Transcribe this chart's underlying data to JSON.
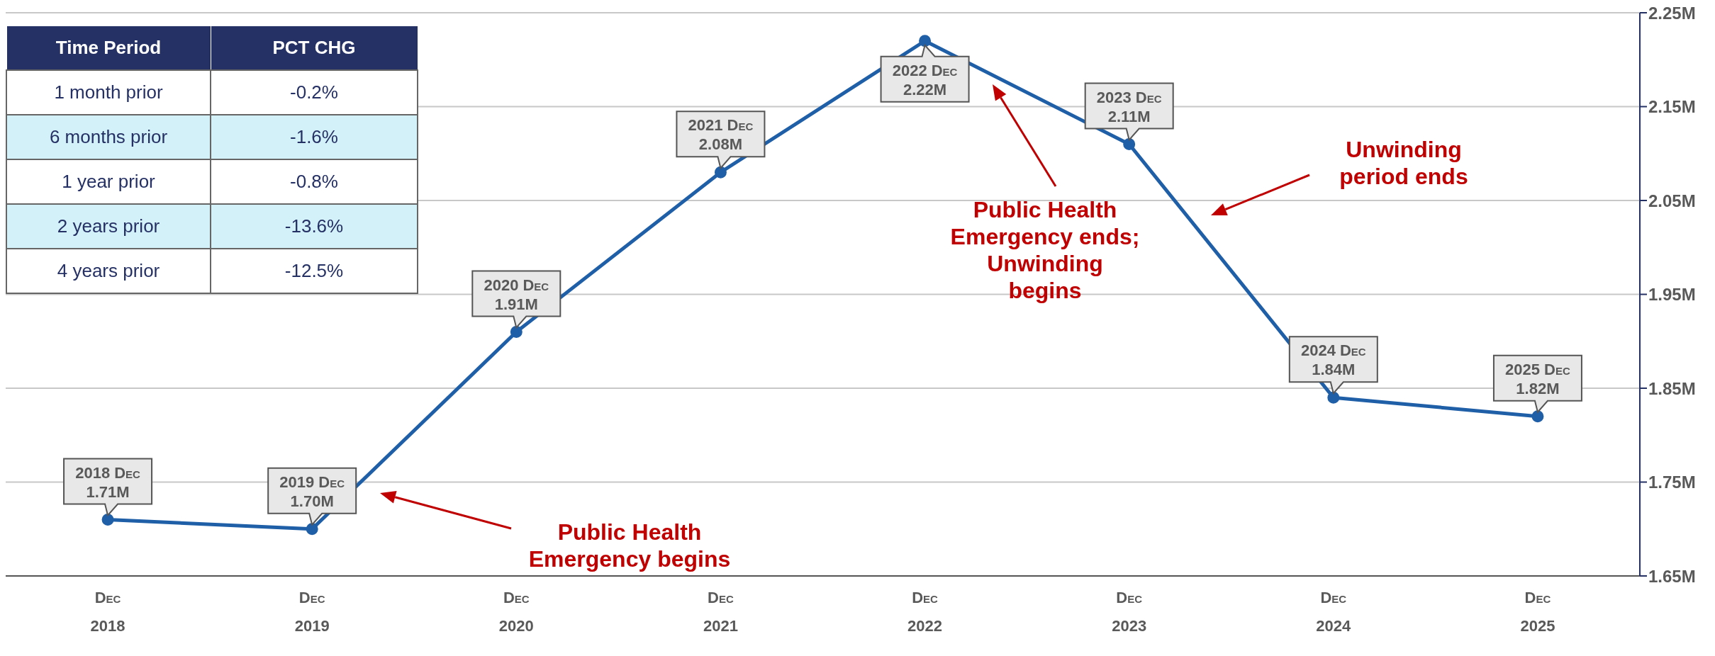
{
  "chart_data": [
    {
      "type": "line",
      "categories": [
        "Dec\n2018",
        "Dec\n2019",
        "Dec\n2020",
        "Dec\n2021",
        "Dec\n2022",
        "Dec\n2023",
        "Dec\n2024",
        "Dec\n2025"
      ],
      "series": [
        {
          "color": "#1f5fa8",
          "values": [
            1.71,
            1.7,
            1.91,
            2.08,
            2.22,
            2.11,
            1.84,
            1.82
          ]
        }
      ],
      "value_labels": [
        "2018 Dec\n1.71M",
        "2019 Dec\n1.70M",
        "2020 Dec\n1.91M",
        "2021 Dec\n2.08M",
        "2022 Dec\n2.22M",
        "2023 Dec\n2.11M",
        "2024 Dec\n1.84M",
        "2025 Dec\n1.82M"
      ],
      "ylim": [
        1.65,
        2.25
      ],
      "yticks": [
        {
          "value": 1.65,
          "label": "1.65M"
        },
        {
          "value": 1.75,
          "label": "1.75M"
        },
        {
          "value": 1.85,
          "label": "1.85M"
        },
        {
          "value": 1.95,
          "label": "1.95M"
        },
        {
          "value": 2.05,
          "label": "2.05M"
        },
        {
          "value": 2.15,
          "label": "2.15M"
        },
        {
          "value": 2.25,
          "label": "2.25M"
        }
      ],
      "grid": "y",
      "marker": "circle",
      "line_style": "solid",
      "annotations": [
        "Public Health\nEmergency begins",
        "Public Health\nEmergency ends;\nUnwinding\nbegins",
        "Unwinding\nperiod ends"
      ]
    },
    {
      "type": "other",
      "annotations": [
        "Time Period",
        "PCT CHG",
        "1 month prior",
        "-0.2%",
        "6 months prior",
        "-1.6%",
        "1 year prior",
        "-0.8%",
        "2 years prior",
        "-13.6%",
        "4 years prior",
        "-12.5%"
      ]
    }
  ]
}
